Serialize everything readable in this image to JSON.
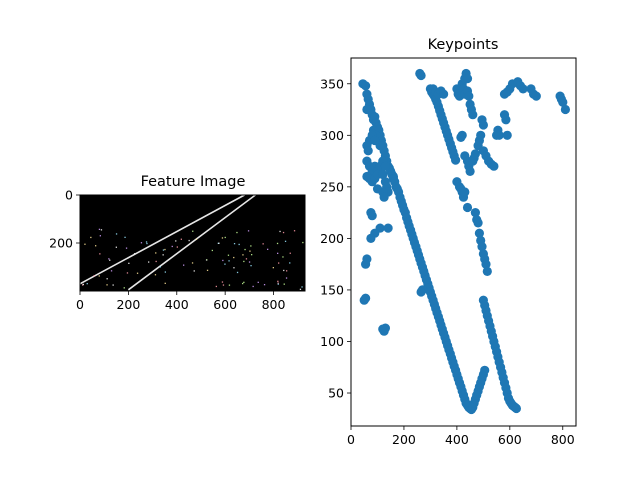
{
  "chart_data": [
    {
      "type": "image",
      "title": "Feature Image",
      "xlim": [
        0,
        930
      ],
      "ylim": [
        400,
        0
      ],
      "xticks": [
        0,
        200,
        400,
        600,
        800
      ],
      "yticks": [
        0,
        200
      ],
      "background": "#000000",
      "lines": [
        {
          "x": [
            0,
            680
          ],
          "y": [
            370,
            0
          ],
          "color": "#e6e6e6"
        },
        {
          "x": [
            200,
            725
          ],
          "y": [
            395,
            0
          ],
          "color": "#e6e6e6"
        }
      ]
    },
    {
      "type": "scatter",
      "title": "Keypoints",
      "xlim": [
        0,
        850
      ],
      "ylim": [
        18,
        375
      ],
      "xticks": [
        0,
        200,
        400,
        600,
        800
      ],
      "yticks": [
        50,
        100,
        150,
        200,
        250,
        300,
        350
      ],
      "marker_color": "#1f77b4",
      "points": [
        [
          45,
          350
        ],
        [
          55,
          348
        ],
        [
          60,
          340
        ],
        [
          65,
          335
        ],
        [
          70,
          330
        ],
        [
          75,
          325
        ],
        [
          60,
          325
        ],
        [
          80,
          320
        ],
        [
          85,
          315
        ],
        [
          90,
          318
        ],
        [
          95,
          312
        ],
        [
          100,
          308
        ],
        [
          85,
          305
        ],
        [
          105,
          305
        ],
        [
          110,
          300
        ],
        [
          95,
          300
        ],
        [
          115,
          295
        ],
        [
          120,
          290
        ],
        [
          125,
          285
        ],
        [
          130,
          280
        ],
        [
          110,
          290
        ],
        [
          135,
          275
        ],
        [
          140,
          270
        ],
        [
          145,
          268
        ],
        [
          150,
          265
        ],
        [
          155,
          262
        ],
        [
          160,
          260
        ],
        [
          70,
          295
        ],
        [
          80,
          300
        ],
        [
          90,
          295
        ],
        [
          60,
          290
        ],
        [
          65,
          285
        ],
        [
          60,
          275
        ],
        [
          70,
          270
        ],
        [
          80,
          265
        ],
        [
          90,
          270
        ],
        [
          100,
          265
        ],
        [
          110,
          270
        ],
        [
          120,
          275
        ],
        [
          130,
          270
        ],
        [
          60,
          260
        ],
        [
          70,
          258
        ],
        [
          80,
          255
        ],
        [
          90,
          258
        ],
        [
          100,
          262
        ],
        [
          120,
          262
        ],
        [
          130,
          255
        ],
        [
          135,
          250
        ],
        [
          140,
          245
        ],
        [
          100,
          248
        ],
        [
          120,
          245
        ],
        [
          125,
          240
        ],
        [
          75,
          225
        ],
        [
          80,
          222
        ],
        [
          110,
          210
        ],
        [
          90,
          205
        ],
        [
          75,
          200
        ],
        [
          140,
          210
        ],
        [
          60,
          180
        ],
        [
          55,
          175
        ],
        [
          50,
          140
        ],
        [
          55,
          142
        ],
        [
          120,
          112
        ],
        [
          125,
          110
        ],
        [
          130,
          113
        ],
        [
          160,
          258
        ],
        [
          165,
          255
        ],
        [
          170,
          250
        ],
        [
          175,
          248
        ],
        [
          180,
          245
        ],
        [
          185,
          240
        ],
        [
          190,
          236
        ],
        [
          195,
          232
        ],
        [
          200,
          228
        ],
        [
          205,
          225
        ],
        [
          210,
          220
        ],
        [
          215,
          216
        ],
        [
          220,
          212
        ],
        [
          225,
          208
        ],
        [
          230,
          204
        ],
        [
          235,
          200
        ],
        [
          240,
          196
        ],
        [
          245,
          192
        ],
        [
          250,
          188
        ],
        [
          255,
          184
        ],
        [
          260,
          180
        ],
        [
          265,
          176
        ],
        [
          270,
          172
        ],
        [
          275,
          168
        ],
        [
          280,
          164
        ],
        [
          285,
          160
        ],
        [
          290,
          156
        ],
        [
          295,
          152
        ],
        [
          300,
          148
        ],
        [
          305,
          144
        ],
        [
          310,
          140
        ],
        [
          315,
          136
        ],
        [
          320,
          132
        ],
        [
          325,
          128
        ],
        [
          330,
          124
        ],
        [
          335,
          120
        ],
        [
          340,
          116
        ],
        [
          345,
          112
        ],
        [
          350,
          108
        ],
        [
          355,
          104
        ],
        [
          360,
          100
        ],
        [
          365,
          96
        ],
        [
          370,
          92
        ],
        [
          375,
          88
        ],
        [
          380,
          84
        ],
        [
          385,
          80
        ],
        [
          390,
          76
        ],
        [
          395,
          72
        ],
        [
          400,
          68
        ],
        [
          405,
          64
        ],
        [
          410,
          60
        ],
        [
          415,
          56
        ],
        [
          420,
          52
        ],
        [
          425,
          48
        ],
        [
          430,
          44
        ],
        [
          435,
          40
        ],
        [
          440,
          38
        ],
        [
          445,
          36
        ],
        [
          450,
          35
        ],
        [
          455,
          34
        ],
        [
          460,
          36
        ],
        [
          465,
          40
        ],
        [
          470,
          44
        ],
        [
          475,
          48
        ],
        [
          480,
          52
        ],
        [
          485,
          56
        ],
        [
          490,
          60
        ],
        [
          495,
          64
        ],
        [
          500,
          68
        ],
        [
          505,
          72
        ],
        [
          270,
          150
        ],
        [
          265,
          148
        ],
        [
          300,
          345
        ],
        [
          305,
          342
        ],
        [
          310,
          340
        ],
        [
          315,
          338
        ],
        [
          320,
          335
        ],
        [
          325,
          332
        ],
        [
          330,
          328
        ],
        [
          335,
          324
        ],
        [
          340,
          320
        ],
        [
          345,
          316
        ],
        [
          350,
          312
        ],
        [
          355,
          308
        ],
        [
          360,
          304
        ],
        [
          365,
          300
        ],
        [
          370,
          296
        ],
        [
          375,
          292
        ],
        [
          380,
          288
        ],
        [
          385,
          284
        ],
        [
          390,
          280
        ],
        [
          395,
          276
        ],
        [
          260,
          360
        ],
        [
          265,
          358
        ],
        [
          310,
          345
        ],
        [
          320,
          342
        ],
        [
          330,
          340
        ],
        [
          340,
          343
        ],
        [
          350,
          340
        ],
        [
          400,
          345
        ],
        [
          405,
          340
        ],
        [
          410,
          338
        ],
        [
          420,
          350
        ],
        [
          425,
          345
        ],
        [
          430,
          340
        ],
        [
          430,
          355
        ],
        [
          435,
          360
        ],
        [
          440,
          355
        ],
        [
          440,
          343
        ],
        [
          445,
          338
        ],
        [
          450,
          330
        ],
        [
          455,
          325
        ],
        [
          460,
          320
        ],
        [
          420,
          300
        ],
        [
          415,
          298
        ],
        [
          430,
          280
        ],
        [
          440,
          275
        ],
        [
          445,
          270
        ],
        [
          450,
          265
        ],
        [
          400,
          255
        ],
        [
          410,
          250
        ],
        [
          415,
          248
        ],
        [
          420,
          245
        ],
        [
          425,
          240
        ],
        [
          430,
          245
        ],
        [
          440,
          230
        ],
        [
          460,
          275
        ],
        [
          465,
          278
        ],
        [
          470,
          282
        ],
        [
          480,
          290
        ],
        [
          485,
          295
        ],
        [
          490,
          300
        ],
        [
          500,
          285
        ],
        [
          510,
          280
        ],
        [
          520,
          275
        ],
        [
          530,
          272
        ],
        [
          540,
          270
        ],
        [
          495,
          315
        ],
        [
          500,
          310
        ],
        [
          550,
          300
        ],
        [
          555,
          305
        ],
        [
          560,
          300
        ],
        [
          580,
          340
        ],
        [
          590,
          342
        ],
        [
          600,
          345
        ],
        [
          610,
          350
        ],
        [
          630,
          352
        ],
        [
          640,
          348
        ],
        [
          650,
          345
        ],
        [
          680,
          345
        ],
        [
          690,
          340
        ],
        [
          700,
          338
        ],
        [
          790,
          338
        ],
        [
          795,
          335
        ],
        [
          800,
          332
        ],
        [
          810,
          325
        ],
        [
          580,
          320
        ],
        [
          585,
          315
        ],
        [
          590,
          300
        ],
        [
          470,
          225
        ],
        [
          475,
          218
        ],
        [
          480,
          215
        ],
        [
          485,
          205
        ],
        [
          490,
          198
        ],
        [
          495,
          192
        ],
        [
          500,
          185
        ],
        [
          505,
          180
        ],
        [
          510,
          175
        ],
        [
          515,
          168
        ],
        [
          500,
          140
        ],
        [
          505,
          135
        ],
        [
          510,
          130
        ],
        [
          515,
          125
        ],
        [
          520,
          120
        ],
        [
          525,
          115
        ],
        [
          530,
          110
        ],
        [
          535,
          105
        ],
        [
          540,
          100
        ],
        [
          545,
          95
        ],
        [
          550,
          90
        ],
        [
          555,
          85
        ],
        [
          560,
          80
        ],
        [
          565,
          75
        ],
        [
          570,
          70
        ],
        [
          575,
          65
        ],
        [
          580,
          60
        ],
        [
          585,
          55
        ],
        [
          590,
          50
        ],
        [
          595,
          45
        ],
        [
          600,
          42
        ],
        [
          605,
          40
        ],
        [
          610,
          38
        ],
        [
          615,
          37
        ],
        [
          620,
          36
        ],
        [
          625,
          35
        ]
      ]
    }
  ]
}
